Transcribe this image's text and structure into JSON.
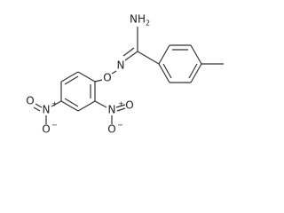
{
  "atoms": [
    "NH",
    "N",
    "O",
    "N",
    "O",
    "O",
    "N",
    "O",
    "O"
  ],
  "subscripts": [
    "2"
  ],
  "charges": [
    "+",
    "−",
    "+",
    "−"
  ]
}
